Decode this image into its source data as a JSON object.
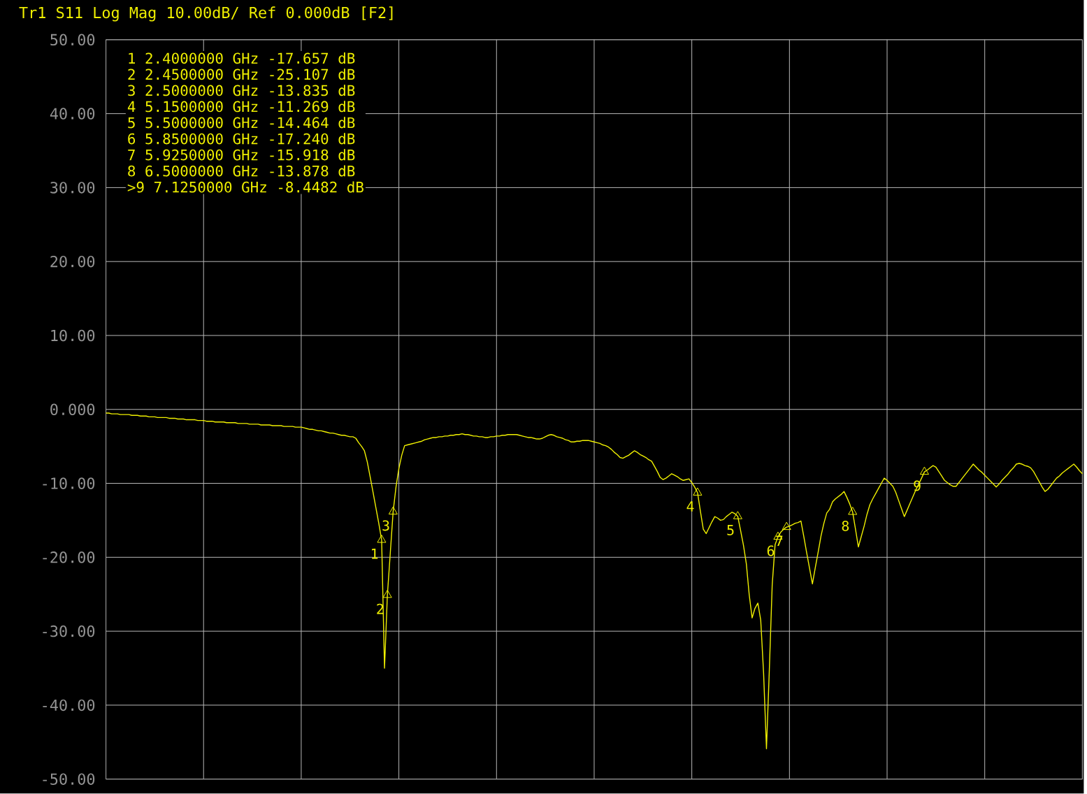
{
  "chart_data": {
    "type": "line",
    "title": "Tr1 S11 Log Mag 10.00dB/ Ref 0.000dB [F2]",
    "categories": [
      null,
      null,
      null,
      null,
      null,
      null,
      null,
      null,
      null,
      null,
      null,
      null,
      null,
      null,
      null,
      null,
      null,
      null,
      null,
      null,
      null,
      null,
      null,
      null,
      null,
      null,
      null,
      null,
      null,
      null,
      null,
      null,
      null,
      null,
      null,
      null,
      null,
      null,
      null,
      null,
      null,
      null,
      null,
      null,
      null,
      null,
      null,
      null,
      null,
      null,
      null,
      null,
      null,
      null,
      null,
      null,
      null,
      null,
      null,
      null,
      null,
      null,
      null,
      null,
      null,
      null,
      null,
      null,
      null,
      null,
      null,
      null,
      null,
      null,
      null,
      null,
      null,
      null,
      null,
      null,
      null,
      null,
      null,
      null,
      null,
      null,
      null,
      null,
      null,
      null,
      null,
      null,
      null,
      null,
      null,
      null,
      null,
      null,
      null,
      null,
      null,
      null,
      null,
      null,
      null,
      null,
      null,
      null,
      null,
      null,
      null,
      null,
      null,
      null,
      null,
      null,
      null,
      null,
      null,
      null,
      null,
      null,
      null,
      null,
      null,
      null,
      null,
      null,
      null,
      null,
      null,
      null,
      null,
      null,
      null,
      null,
      null,
      null,
      null,
      null,
      null,
      null,
      null,
      null,
      null,
      null,
      null,
      null,
      null,
      null,
      null,
      null,
      null,
      null,
      null,
      null,
      null,
      null,
      null,
      null,
      null,
      null,
      null,
      null,
      null,
      null,
      null,
      null,
      null,
      null,
      null,
      null,
      null,
      null,
      null,
      null,
      null,
      null,
      null,
      null,
      null,
      null,
      null,
      null,
      null,
      null,
      null,
      null,
      null,
      null,
      null,
      null,
      null,
      null,
      null,
      null,
      null,
      null,
      null,
      null,
      null,
      null,
      null,
      null,
      null,
      null,
      null,
      null,
      null,
      null,
      null,
      null,
      null,
      null,
      null,
      null,
      null,
      null,
      null,
      null,
      null,
      null,
      null,
      null,
      null,
      null,
      null,
      null,
      null,
      null,
      null,
      null,
      null,
      null,
      null,
      null,
      null,
      null,
      null,
      null,
      null,
      null,
      null,
      null,
      null,
      null,
      null,
      null,
      null,
      null,
      null,
      null,
      null,
      null,
      null,
      null,
      null,
      null,
      null,
      null,
      null,
      null,
      null,
      null,
      null,
      null,
      null,
      null,
      null,
      null,
      null,
      null,
      null,
      null,
      null,
      null,
      null,
      null,
      null,
      null,
      null,
      null,
      null,
      null,
      null,
      null,
      null,
      null,
      null,
      null,
      null,
      null,
      null,
      null,
      null,
      null,
      null,
      null,
      null,
      null,
      null,
      null,
      null,
      null,
      null,
      null,
      null,
      null,
      null,
      null,
      null,
      null,
      null,
      null,
      null,
      null,
      null,
      null,
      null,
      null,
      null,
      null,
      null,
      null,
      null,
      null,
      null,
      null,
      null,
      null,
      null,
      null,
      null,
      null,
      null,
      null,
      null,
      null,
      null,
      null,
      null
    ],
    "series": [
      {
        "color": "#f0f000",
        "values": [
          -0.5,
          -0.5,
          -0.6,
          -0.6,
          -0.6,
          -0.7,
          -0.7,
          -0.7,
          -0.7,
          -0.8,
          -0.8,
          -0.8,
          -0.9,
          -0.9,
          -0.9,
          -1.0,
          -1.0,
          -1.0,
          -1.1,
          -1.1,
          -1.1,
          -1.1,
          -1.2,
          -1.2,
          -1.2,
          -1.3,
          -1.3,
          -1.3,
          -1.4,
          -1.4,
          -1.4,
          -1.4,
          -1.5,
          -1.5,
          -1.5,
          -1.6,
          -1.6,
          -1.6,
          -1.7,
          -1.7,
          -1.7,
          -1.7,
          -1.8,
          -1.8,
          -1.8,
          -1.8,
          -1.9,
          -1.9,
          -1.9,
          -1.9,
          -2.0,
          -2.0,
          -2.0,
          -2.0,
          -2.1,
          -2.1,
          -2.1,
          -2.1,
          -2.2,
          -2.2,
          -2.2,
          -2.2,
          -2.3,
          -2.3,
          -2.3,
          -2.3,
          -2.4,
          -2.4,
          -2.4,
          -2.5,
          -2.6,
          -2.7,
          -2.7,
          -2.8,
          -2.9,
          -2.9,
          -3.0,
          -3.1,
          -3.2,
          -3.2,
          -3.3,
          -3.4,
          -3.5,
          -3.5,
          -3.6,
          -3.7,
          -3.7,
          -3.9,
          -4.5,
          -5.0,
          -5.6,
          -7.1,
          -9.1,
          -11.2,
          -13.3,
          -15.4,
          -17.657,
          -35,
          -25.107,
          -19.5,
          -13.835,
          -10.5,
          -8,
          -6.2,
          -4.9,
          -4.8,
          -4.7,
          -4.6,
          -4.5,
          -4.4,
          -4.3,
          -4.1,
          -4.0,
          -3.9,
          -3.8,
          -3.8,
          -3.7,
          -3.7,
          -3.6,
          -3.6,
          -3.5,
          -3.5,
          -3.4,
          -3.4,
          -3.3,
          -3.4,
          -3.4,
          -3.5,
          -3.6,
          -3.6,
          -3.7,
          -3.7,
          -3.8,
          -3.8,
          -3.7,
          -3.7,
          -3.6,
          -3.6,
          -3.5,
          -3.5,
          -3.4,
          -3.4,
          -3.4,
          -3.4,
          -3.5,
          -3.6,
          -3.7,
          -3.8,
          -3.8,
          -3.9,
          -4.0,
          -4.0,
          -3.9,
          -3.7,
          -3.5,
          -3.4,
          -3.5,
          -3.7,
          -3.8,
          -3.9,
          -4.1,
          -4.2,
          -4.4,
          -4.4,
          -4.3,
          -4.3,
          -4.2,
          -4.2,
          -4.2,
          -4.3,
          -4.4,
          -4.5,
          -4.6,
          -4.8,
          -4.9,
          -5.1,
          -5.4,
          -5.8,
          -6.1,
          -6.5,
          -6.6,
          -6.4,
          -6.2,
          -5.9,
          -5.6,
          -5.8,
          -6.1,
          -6.3,
          -6.5,
          -6.8,
          -7.0,
          -7.7,
          -8.4,
          -9.2,
          -9.5,
          -9.3,
          -9.0,
          -8.7,
          -8.9,
          -9.1,
          -9.4,
          -9.6,
          -9.5,
          -9.4,
          -9.9,
          -10.5,
          -11.269,
          -13.8,
          -16.2,
          -16.8,
          -16.0,
          -15.2,
          -14.5,
          -14.7,
          -15.0,
          -14.9,
          -14.5,
          -14.2,
          -13.9,
          -14.1,
          -14.464,
          -16.4,
          -18.4,
          -20.9,
          -25.1,
          -28.2,
          -26.9,
          -26.2,
          -28.5,
          -35.7,
          -45.9,
          -35.2,
          -23.7,
          -18.3,
          -17.24,
          -16.6,
          -16.2,
          -15.918,
          -15.8,
          -15.6,
          -15.4,
          -15.3,
          -15.1,
          -17.2,
          -19.4,
          -21.5,
          -23.6,
          -21.4,
          -19.3,
          -17.1,
          -15.4,
          -14.0,
          -13.5,
          -12.5,
          -12.1,
          -11.8,
          -11.5,
          -11.1,
          -11.9,
          -12.8,
          -13.878,
          -16.2,
          -18.6,
          -17.2,
          -15.8,
          -14.2,
          -12.9,
          -12.1,
          -11.4,
          -10.7,
          -10.0,
          -9.3,
          -9.6,
          -10.0,
          -10.4,
          -11.2,
          -12.3,
          -13.4,
          -14.5,
          -13.6,
          -12.7,
          -11.8,
          -10.9,
          -10.1,
          -9.3,
          -8.4482,
          -8.2,
          -7.9,
          -7.6,
          -7.8,
          -8.4,
          -9.0,
          -9.6,
          -9.9,
          -10.2,
          -10.4,
          -10.4,
          -9.9,
          -9.4,
          -8.9,
          -8.4,
          -7.9,
          -7.4,
          -7.8,
          -8.2,
          -8.5,
          -8.9,
          -9.3,
          -9.7,
          -10.1,
          -10.5,
          -10.1,
          -9.6,
          -9.2,
          -8.8,
          -8.3,
          -7.9,
          -7.4,
          -7.3,
          -7.4,
          -7.6,
          -7.7,
          -7.9,
          -8.4,
          -9.1,
          -9.8,
          -10.5,
          -11.1,
          -10.8,
          -10.3,
          -9.8,
          -9.3,
          -9.0,
          -8.6,
          -8.3,
          -8.0,
          -7.7,
          -7.4,
          -7.8,
          -8.3,
          -8.7
        ]
      },
      {
        "type": "scatter",
        "marker": "triangle",
        "color": "#f0f000",
        "values": [
          null,
          null,
          null,
          null,
          null,
          null,
          null,
          null,
          null,
          null,
          null,
          null,
          null,
          null,
          null,
          null,
          null,
          null,
          null,
          null,
          null,
          null,
          null,
          null,
          null,
          null,
          null,
          null,
          null,
          null,
          null,
          null,
          null,
          null,
          null,
          null,
          null,
          null,
          null,
          null,
          null,
          null,
          null,
          null,
          null,
          null,
          null,
          null,
          null,
          null,
          null,
          null,
          null,
          null,
          null,
          null,
          null,
          null,
          null,
          null,
          null,
          null,
          null,
          null,
          null,
          null,
          null,
          null,
          null,
          null,
          null,
          null,
          null,
          null,
          null,
          null,
          null,
          null,
          null,
          null,
          null,
          null,
          null,
          null,
          null,
          null,
          null,
          null,
          null,
          null,
          null,
          null,
          null,
          null,
          null,
          null,
          -17.657,
          null,
          -25.107,
          null,
          -13.835,
          null,
          null,
          null,
          null,
          null,
          null,
          null,
          null,
          null,
          null,
          null,
          null,
          null,
          null,
          null,
          null,
          null,
          null,
          null,
          null,
          null,
          null,
          null,
          null,
          null,
          null,
          null,
          null,
          null,
          null,
          null,
          null,
          null,
          null,
          null,
          null,
          null,
          null,
          null,
          null,
          null,
          null,
          null,
          null,
          null,
          null,
          null,
          null,
          null,
          null,
          null,
          null,
          null,
          null,
          null,
          null,
          null,
          null,
          null,
          null,
          null,
          null,
          null,
          null,
          null,
          null,
          null,
          null,
          null,
          null,
          null,
          null,
          null,
          null,
          null,
          null,
          null,
          null,
          null,
          null,
          null,
          null,
          null,
          null,
          null,
          null,
          null,
          null,
          null,
          null,
          null,
          null,
          null,
          null,
          null,
          null,
          null,
          null,
          null,
          null,
          null,
          null,
          null,
          null,
          null,
          -11.269,
          null,
          null,
          null,
          null,
          null,
          null,
          null,
          null,
          null,
          null,
          null,
          null,
          null,
          -14.464,
          null,
          null,
          null,
          null,
          null,
          null,
          null,
          null,
          null,
          null,
          null,
          null,
          null,
          -17.24,
          null,
          null,
          -15.918,
          null,
          null,
          null,
          null,
          null,
          null,
          null,
          null,
          null,
          null,
          null,
          null,
          null,
          null,
          null,
          null,
          null,
          null,
          null,
          null,
          null,
          null,
          -13.878,
          null,
          null,
          null,
          null,
          null,
          null,
          null,
          null,
          null,
          null,
          null,
          null,
          null,
          null,
          null,
          null,
          null,
          null,
          null,
          null,
          null,
          null,
          null,
          null,
          -8.4482,
          null,
          null,
          null,
          null,
          null,
          null,
          null,
          null,
          null,
          null,
          null,
          null,
          null,
          null,
          null,
          null,
          null,
          null,
          null,
          null,
          null,
          null,
          null,
          null,
          null,
          null,
          null,
          null,
          null,
          null,
          null,
          null,
          null,
          null,
          null,
          null,
          null,
          null,
          null,
          null,
          null,
          null,
          null,
          null,
          null,
          null,
          null,
          null,
          null,
          null,
          null,
          null,
          null,
          null,
          null
        ]
      }
    ],
    "ylim": [
      -50,
      50
    ],
    "yticks": [
      {
        "value": 50,
        "label": "50.00"
      },
      {
        "value": 40,
        "label": "40.00"
      },
      {
        "value": 30,
        "label": "30.00"
      },
      {
        "value": 20,
        "label": "20.00"
      },
      {
        "value": 10,
        "label": "10.00"
      },
      {
        "value": 0,
        "label": "0.000"
      },
      {
        "value": -10,
        "label": "-10.00"
      },
      {
        "value": -20,
        "label": "-20.00"
      },
      {
        "value": -30,
        "label": "-30.00"
      },
      {
        "value": -40,
        "label": "-40.00"
      },
      {
        "value": -50,
        "label": "-50.00"
      }
    ],
    "grid": true,
    "annotations": [
      "1 2.4000000 GHz -17.657 dB",
      "2 2.4500000 GHz -25.107 dB",
      "3 2.5000000 GHz -13.835 dB",
      "4 5.1500000 GHz -11.269 dB",
      "5 5.5000000 GHz -14.464 dB",
      "6 5.8500000 GHz -17.240 dB",
      "7 5.9250000 GHz -15.918 dB",
      "8 6.5000000 GHz -13.878 dB",
      ">9 7.1250000 GHz -8.4482 dB",
      "1",
      "2",
      "3",
      "4",
      "5",
      "6",
      "7",
      "8",
      "9"
    ]
  }
}
